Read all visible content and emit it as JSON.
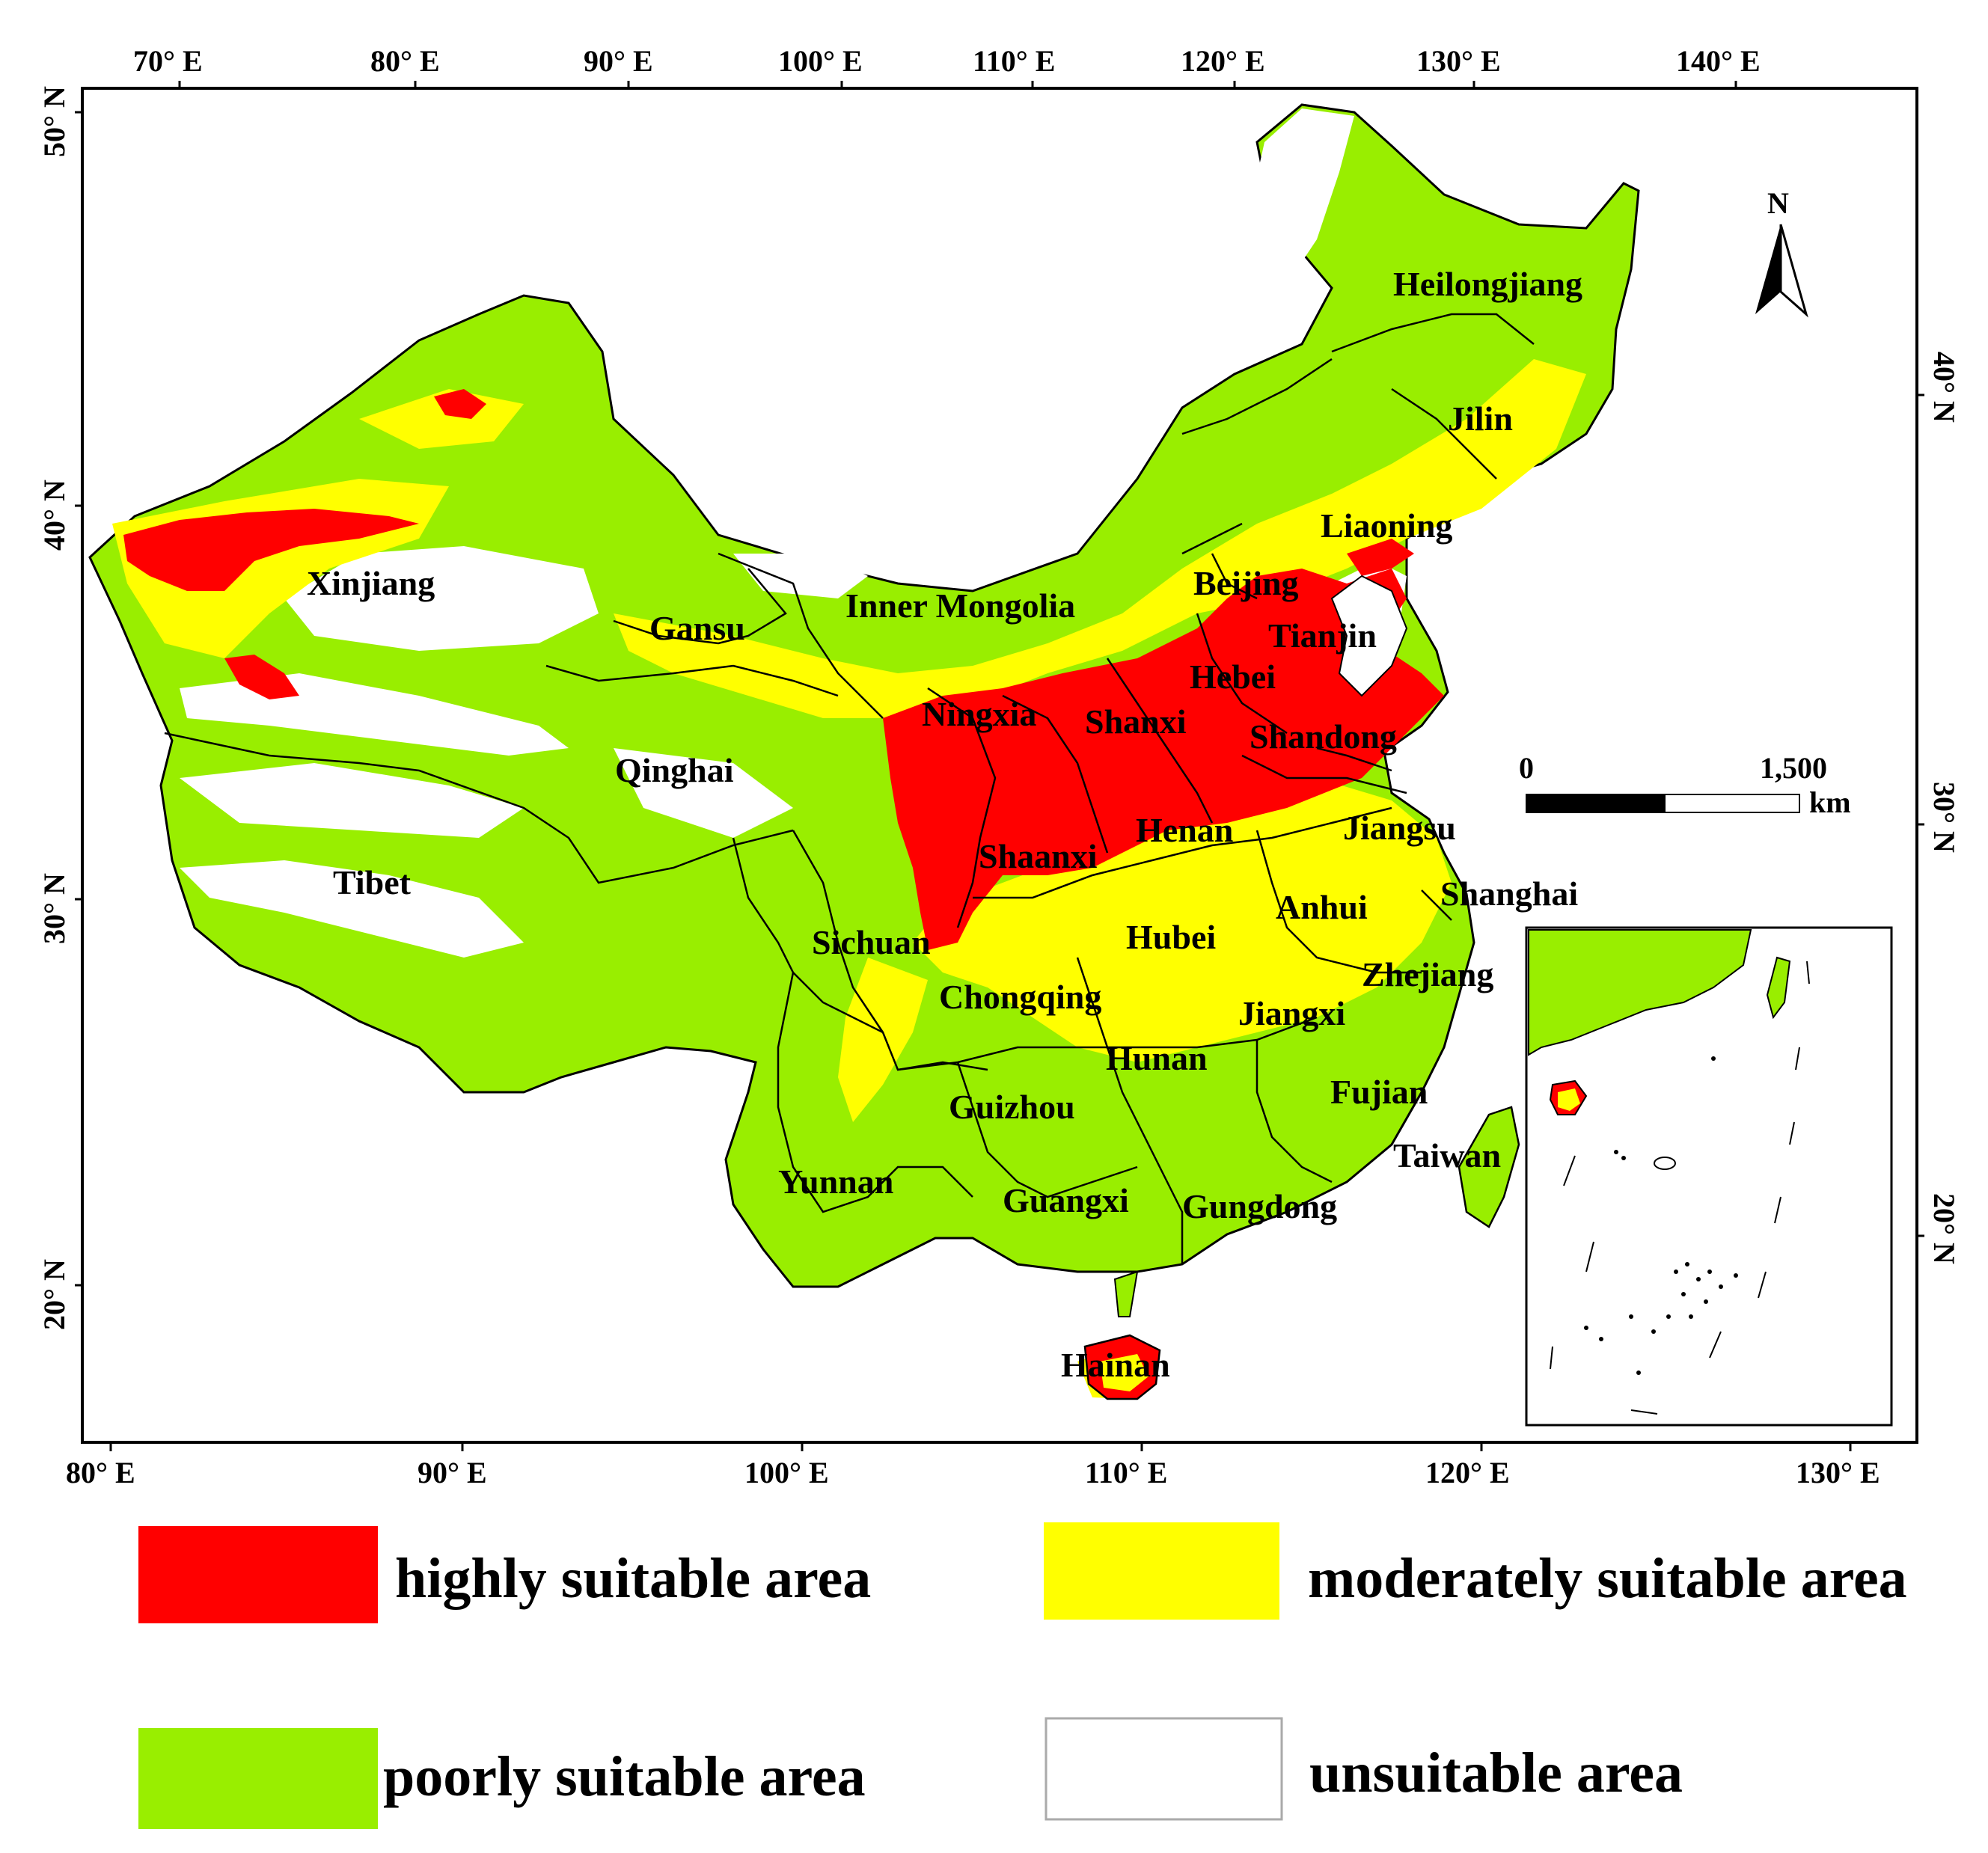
{
  "map": {
    "top_longitude_ticks": [
      "70° E",
      "80° E",
      "90° E",
      "100° E",
      "110° E",
      "120° E",
      "130° E",
      "140° E"
    ],
    "bottom_longitude_ticks": [
      "80° E",
      "90° E",
      "100° E",
      "110° E",
      "120° E",
      "130° E"
    ],
    "left_latitude_ticks": [
      "50° N",
      "40° N",
      "30° N",
      "20° N"
    ],
    "right_latitude_ticks": [
      "40° N",
      "30° N",
      "20° N"
    ],
    "provinces": {
      "heilongjiang": "Heilongjiang",
      "jilin": "Jilin",
      "liaoning": "Liaoning",
      "beijing": "Beijing",
      "tianjin": "Tianjin",
      "hebei": "Hebei",
      "shandong": "Shandong",
      "shanxi": "Shanxi",
      "inner_mongolia": "Inner Mongolia",
      "xinjiang": "Xinjiang",
      "gansu": "Gansu",
      "ningxia": "Ningxia",
      "qinghai": "Qinghai",
      "tibet": "Tibet",
      "shaanxi": "Shaanxi",
      "henan": "Henan",
      "jiangsu": "Jiangsu",
      "shanghai": "Shanghai",
      "anhui": "Anhui",
      "hubei": "Hubei",
      "sichuan": "Sichuan",
      "zhejiang": "Zhejiang",
      "chongqing": "Chongqing",
      "jiangxi": "Jiangxi",
      "hunan": "Hunan",
      "fujian": "Fujian",
      "guizhou": "Guizhou",
      "taiwan": "Taiwan",
      "yunnan": "Yunnan",
      "guangxi": "Guangxi",
      "gungdong": "Gungdong",
      "hainan": "Hainan"
    },
    "north_arrow": {
      "label": "N"
    },
    "scale_bar": {
      "start": "0",
      "end": "1,500",
      "unit": "km"
    },
    "colors": {
      "highly": "#ff0000",
      "moderately": "#ffff00",
      "poorly": "#99ee00",
      "unsuitable": "#ffffff"
    }
  },
  "legend": {
    "highly": "highly suitable area",
    "moderately": "moderately suitable area",
    "poorly": "poorly suitable area",
    "unsuitable": "unsuitable area"
  }
}
